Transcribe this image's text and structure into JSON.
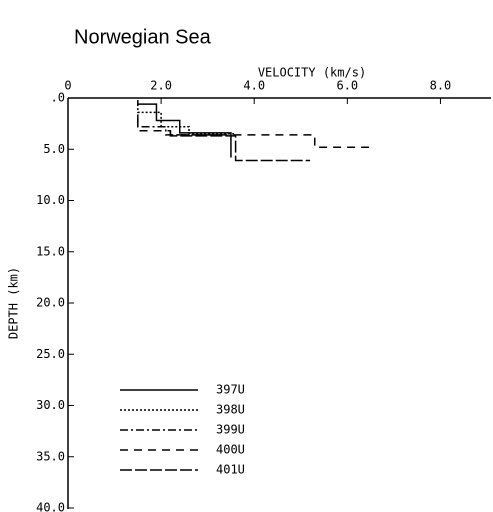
{
  "chart_data": {
    "type": "line",
    "title": "Norwegian Sea",
    "x_label": "VELOCITY (km/s)",
    "y_label": "DEPTH (km)",
    "xlim": [
      0,
      9
    ],
    "ylim": [
      0,
      40
    ],
    "y_inverted": true,
    "x_axis_position": "top",
    "xticks": [
      0,
      {
        "value": 2,
        "label": "2.0"
      },
      {
        "value": 4,
        "label": "4.0"
      },
      {
        "value": 6,
        "label": "6.0"
      },
      {
        "value": 8,
        "label": "8.0"
      }
    ],
    "yticks": [
      {
        "value": 0,
        "label": ".0"
      },
      {
        "value": 5,
        "label": "5.0"
      },
      {
        "value": 10,
        "label": "10.0"
      },
      {
        "value": 15,
        "label": "15.0"
      },
      {
        "value": 20,
        "label": "20.0"
      },
      {
        "value": 25,
        "label": "25.0"
      },
      {
        "value": 30,
        "label": "30.0"
      },
      {
        "value": 35,
        "label": "35.0"
      },
      {
        "value": 40,
        "label": "40.0"
      }
    ],
    "legend": "lower left",
    "series": [
      {
        "name": "397U",
        "color": "#000000",
        "dash": "solid",
        "x": [
          1.5,
          1.5,
          1.9,
          1.9,
          2.4,
          2.4,
          3.5,
          3.5
        ],
        "y": [
          0.2,
          0.6,
          0.6,
          2.2,
          2.2,
          3.4,
          3.4,
          5.8
        ]
      },
      {
        "name": "398U",
        "color": "#000000",
        "dash": "dotted",
        "x": [
          1.5,
          1.5,
          2.0,
          2.0,
          2.6,
          2.6,
          3.6
        ],
        "y": [
          0.6,
          1.4,
          1.4,
          2.8,
          2.8,
          3.5,
          3.5
        ]
      },
      {
        "name": "399U",
        "color": "#000000",
        "dash": "dashdot",
        "x": [
          1.5,
          1.5,
          2.1,
          2.1,
          3.3
        ],
        "y": [
          1.6,
          2.8,
          2.8,
          3.6,
          3.6
        ]
      },
      {
        "name": "400U",
        "color": "#000000",
        "dash": "dashed",
        "x": [
          1.5,
          1.5,
          2.2,
          2.2,
          5.3,
          5.3,
          6.5
        ],
        "y": [
          2.0,
          3.2,
          3.2,
          3.6,
          3.6,
          4.8,
          4.8
        ]
      },
      {
        "name": "401U",
        "color": "#000000",
        "dash": "longdash",
        "x": [
          2.2,
          2.2,
          3.6,
          3.6,
          5.2
        ],
        "y": [
          3.2,
          3.7,
          3.7,
          6.1,
          6.1
        ]
      }
    ]
  }
}
